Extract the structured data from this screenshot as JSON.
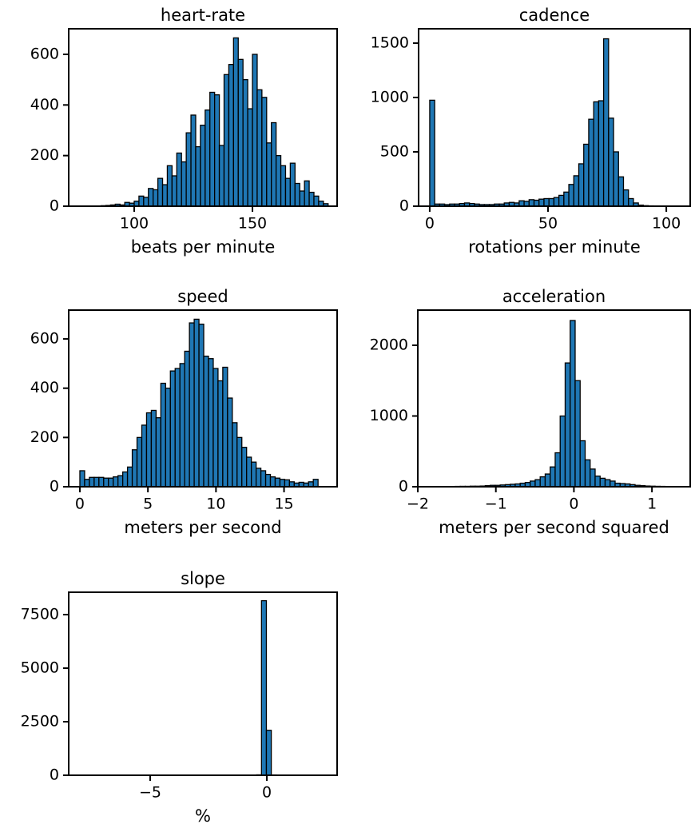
{
  "chart_data": [
    {
      "type": "histogram",
      "title": "heart-rate",
      "xlabel": "beats per minute",
      "color": "#1f77b4",
      "edgecolor": "#000000",
      "bins": [
        82,
        84,
        86,
        88,
        90,
        92,
        94,
        96,
        98,
        100,
        102,
        104,
        106,
        108,
        110,
        112,
        114,
        116,
        118,
        120,
        122,
        124,
        126,
        128,
        130,
        132,
        134,
        136,
        138,
        140,
        142,
        144,
        146,
        148,
        150,
        152,
        154,
        156,
        158,
        160,
        162,
        164,
        166,
        168,
        170,
        172,
        174,
        176,
        178,
        180,
        182
      ],
      "values": [
        0,
        0,
        2,
        3,
        5,
        8,
        5,
        15,
        12,
        20,
        40,
        35,
        70,
        65,
        110,
        85,
        160,
        120,
        210,
        175,
        290,
        360,
        235,
        320,
        380,
        450,
        440,
        240,
        520,
        560,
        665,
        580,
        500,
        385,
        600,
        460,
        430,
        250,
        330,
        200,
        160,
        110,
        170,
        90,
        60,
        100,
        55,
        40,
        20,
        10
      ],
      "xlim": [
        72.3,
        185.8
      ],
      "ylim": [
        0,
        701
      ],
      "xticks": [
        100,
        150
      ],
      "yticks": [
        0,
        200,
        400,
        600
      ]
    },
    {
      "type": "histogram",
      "title": "cadence",
      "xlabel": "rotations per minute",
      "color": "#1f77b4",
      "edgecolor": "#000000",
      "bins": [
        0,
        2.1,
        4.2,
        6.3,
        8.4,
        10.5,
        12.6,
        14.7,
        16.8,
        18.9,
        21,
        23.1,
        25.2,
        27.3,
        29.4,
        31.5,
        33.6,
        35.7,
        37.8,
        39.9,
        42,
        44.1,
        46.2,
        48.3,
        50.4,
        52.5,
        54.6,
        56.7,
        58.8,
        60.9,
        63,
        65.1,
        67.2,
        69.3,
        71.4,
        73.5,
        75.6,
        77.7,
        79.8,
        81.9,
        84,
        86.1,
        88.2,
        90.3,
        92.4,
        94.5,
        96.6,
        98.7,
        100.8,
        102.9,
        105
      ],
      "values": [
        975,
        20,
        20,
        15,
        20,
        20,
        25,
        30,
        25,
        20,
        15,
        15,
        15,
        20,
        20,
        30,
        35,
        30,
        50,
        45,
        60,
        55,
        65,
        70,
        70,
        80,
        100,
        130,
        200,
        280,
        390,
        570,
        800,
        960,
        970,
        1540,
        810,
        500,
        270,
        150,
        70,
        30,
        10,
        5,
        3,
        2,
        0,
        0,
        0,
        0
      ],
      "xlim": [
        -4.7,
        110.1
      ],
      "ylim": [
        0,
        1632
      ],
      "xticks": [
        0,
        50,
        100
      ],
      "yticks": [
        0,
        500,
        1000,
        1500
      ]
    },
    {
      "type": "histogram",
      "title": "speed",
      "xlabel": "meters per second",
      "color": "#1f77b4",
      "edgecolor": "#000000",
      "bins": [
        0,
        0.35,
        0.7,
        1.05,
        1.4,
        1.75,
        2.1,
        2.45,
        2.8,
        3.15,
        3.5,
        3.85,
        4.2,
        4.55,
        4.9,
        5.25,
        5.6,
        5.95,
        6.3,
        6.65,
        7,
        7.35,
        7.7,
        8.05,
        8.4,
        8.75,
        9.1,
        9.45,
        9.8,
        10.15,
        10.5,
        10.85,
        11.2,
        11.55,
        11.9,
        12.25,
        12.6,
        12.95,
        13.3,
        13.65,
        14,
        14.35,
        14.7,
        15.05,
        15.4,
        15.75,
        16.1,
        16.45,
        16.8,
        17.15,
        17.5
      ],
      "values": [
        65,
        30,
        38,
        38,
        38,
        35,
        35,
        40,
        45,
        60,
        80,
        150,
        200,
        250,
        300,
        310,
        280,
        420,
        400,
        470,
        480,
        500,
        550,
        665,
        680,
        660,
        530,
        520,
        480,
        430,
        485,
        360,
        260,
        200,
        160,
        120,
        100,
        75,
        65,
        50,
        40,
        35,
        30,
        28,
        20,
        15,
        18,
        15,
        20,
        30
      ],
      "xlim": [
        -0.82,
        18.9
      ],
      "ylim": [
        0,
        717
      ],
      "xticks": [
        0,
        5,
        10,
        15
      ],
      "yticks": [
        0,
        200,
        400,
        600
      ]
    },
    {
      "type": "histogram",
      "title": "acceleration",
      "xlabel": "meters per second squared",
      "color": "#1f77b4",
      "edgecolor": "#000000",
      "bins": [
        -1.84,
        -1.776,
        -1.712,
        -1.648,
        -1.584,
        -1.52,
        -1.456,
        -1.392,
        -1.328,
        -1.264,
        -1.2,
        -1.136,
        -1.072,
        -1.008,
        -0.944,
        -0.88,
        -0.816,
        -0.752,
        -0.688,
        -0.624,
        -0.56,
        -0.496,
        -0.432,
        -0.368,
        -0.304,
        -0.24,
        -0.176,
        -0.112,
        -0.048,
        0.016,
        0.08,
        0.144,
        0.208,
        0.272,
        0.336,
        0.4,
        0.464,
        0.528,
        0.592,
        0.656,
        0.72,
        0.784,
        0.848,
        0.912,
        0.976,
        1.04,
        1.104,
        1.168,
        1.232,
        1.296,
        1.36
      ],
      "values": [
        3,
        3,
        3,
        4,
        4,
        5,
        6,
        6,
        8,
        8,
        10,
        15,
        20,
        20,
        25,
        30,
        35,
        40,
        50,
        60,
        80,
        100,
        140,
        180,
        280,
        480,
        1000,
        1750,
        2350,
        1500,
        650,
        380,
        250,
        150,
        120,
        100,
        80,
        50,
        45,
        40,
        30,
        20,
        15,
        10,
        8,
        6,
        5,
        4,
        3,
        3
      ],
      "xlim": [
        -2.0,
        1.49
      ],
      "ylim": [
        0,
        2497
      ],
      "xticks": [
        {
          "value": -2,
          "label": "−2"
        },
        {
          "value": -1,
          "label": "−1"
        },
        0,
        1
      ],
      "yticks": [
        0,
        1000,
        2000
      ]
    },
    {
      "type": "histogram",
      "title": "slope",
      "xlabel": "%",
      "color": "#1f77b4",
      "edgecolor": "#000000",
      "bins": [
        -8,
        -7.79,
        -7.58,
        -7.37,
        -7.16,
        -6.95,
        -6.74,
        -6.53,
        -6.32,
        -6.11,
        -5.9,
        -5.69,
        -5.48,
        -5.27,
        -5.06,
        -4.85,
        -4.64,
        -4.43,
        -4.22,
        -4.01,
        -3.8,
        -3.59,
        -3.38,
        -3.17,
        -2.96,
        -2.75,
        -2.54,
        -2.33,
        -2.12,
        -1.91,
        -1.7,
        -1.49,
        -1.28,
        -1.07,
        -0.86,
        -0.65,
        -0.44,
        -0.23,
        -0.02,
        0.19,
        0.4,
        0.61,
        0.82,
        1.03,
        1.24,
        1.45,
        1.66,
        1.87,
        2.08,
        2.29,
        2.5
      ],
      "values": [
        1,
        0,
        0,
        0,
        0,
        0,
        0,
        0,
        0,
        0,
        1,
        0,
        0,
        0,
        0,
        0,
        0,
        0,
        0,
        0,
        0,
        0,
        1,
        0,
        0,
        0,
        0,
        0,
        0,
        1,
        0,
        1,
        2,
        3,
        5,
        8,
        20,
        8150,
        2100,
        15,
        6,
        4,
        2,
        1,
        1,
        0,
        0,
        0,
        0,
        1
      ],
      "xlim": [
        -8.49,
        3.01
      ],
      "ylim": [
        0,
        8545
      ],
      "xticks": [
        {
          "value": -5,
          "label": "−5"
        },
        0
      ],
      "yticks": [
        0,
        2500,
        5000,
        7500
      ]
    }
  ]
}
